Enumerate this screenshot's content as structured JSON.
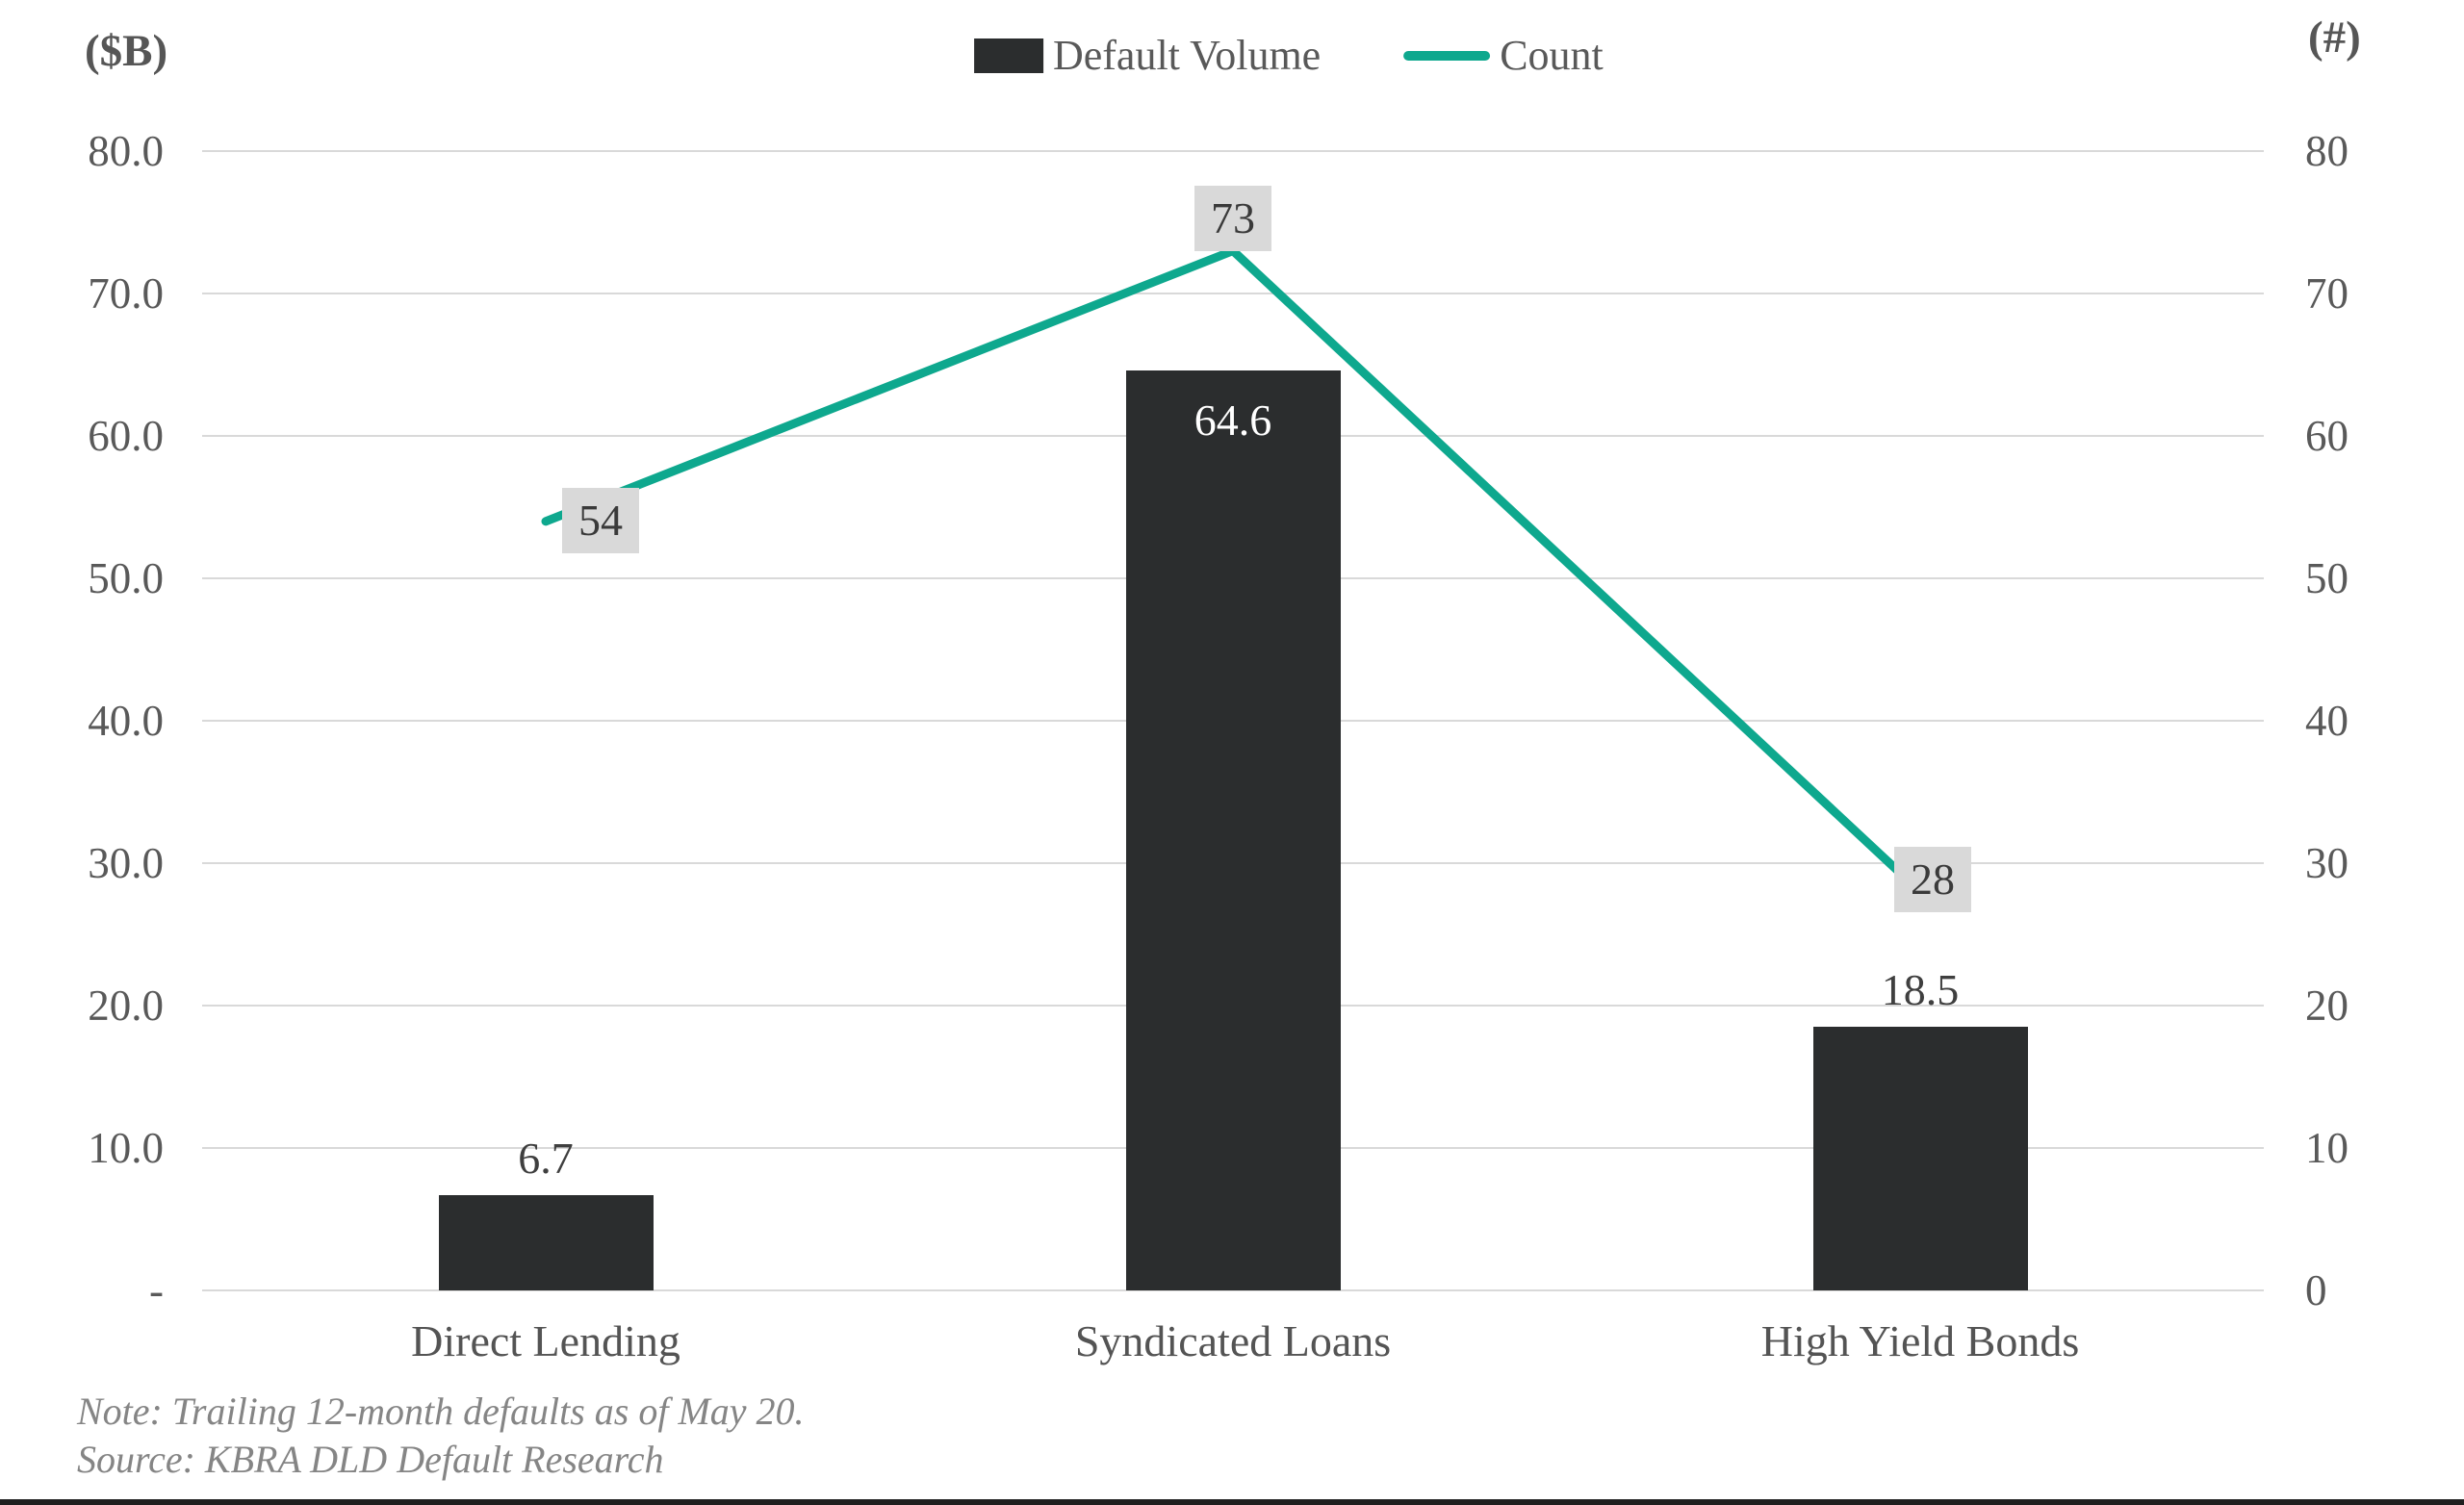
{
  "chart_data": {
    "type": "bar",
    "categories": [
      "Direct Lending",
      "Syndicated Loans",
      "High Yield Bonds"
    ],
    "series": [
      {
        "name": "Default Volume",
        "type": "bar",
        "axis": "left",
        "values": [
          6.7,
          64.6,
          18.5
        ],
        "data_labels": [
          "6.7",
          "64.6",
          "18.5"
        ],
        "label_inside": [
          false,
          true,
          false
        ],
        "color": "#2b2d2e"
      },
      {
        "name": "Count",
        "type": "line",
        "axis": "right",
        "values": [
          54,
          73,
          28
        ],
        "data_labels": [
          "54",
          "73",
          "28"
        ],
        "label_background": "#d9d9d9",
        "color": "#0ea88e"
      }
    ],
    "left_axis": {
      "label": "($B)",
      "ticks": [
        "80.0",
        "70.0",
        "60.0",
        "50.0",
        "40.0",
        "30.0",
        "20.0",
        "10.0",
        "-"
      ],
      "range": [
        0,
        80
      ]
    },
    "right_axis": {
      "label": "(#)",
      "ticks": [
        "80",
        "70",
        "60",
        "50",
        "40",
        "30",
        "20",
        "10",
        "0"
      ],
      "range": [
        0,
        80
      ]
    },
    "grid": true,
    "gridline_color": "#d9d9d9",
    "legend_position": "top",
    "note": "Note: Trailing 12-month defaults as of May 20.",
    "source": "Source: KBRA DLD Default Research"
  }
}
